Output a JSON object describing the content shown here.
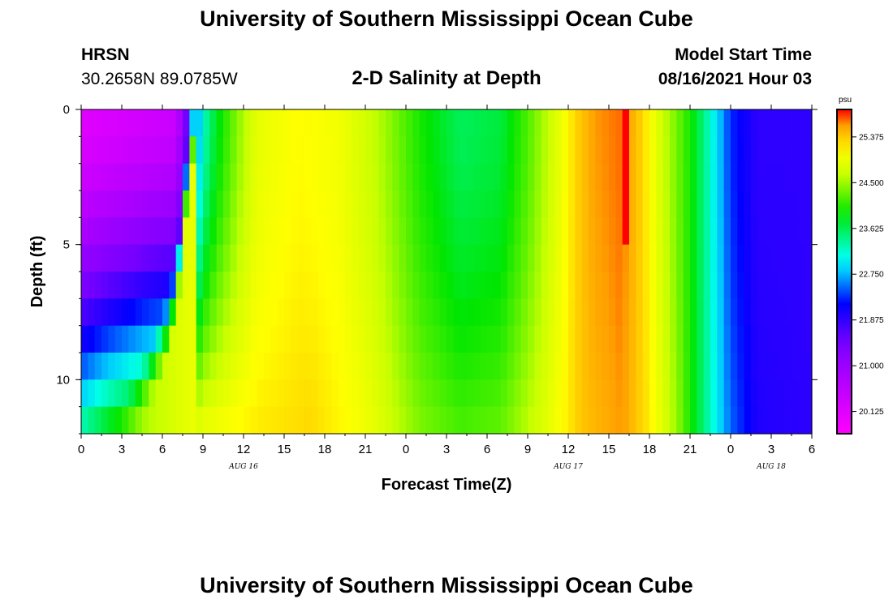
{
  "header": {
    "title": "University of Southern Mississippi Ocean Cube",
    "station": "HRSN",
    "coords": "30.2658N  89.0785W",
    "subtitle": "2-D Salinity at Depth",
    "start_label": "Model Start Time",
    "start_value": "08/16/2021 Hour 03"
  },
  "footer": {
    "title": "University of Southern Mississippi Ocean Cube"
  },
  "chart_data": {
    "type": "heatmap",
    "title": "2-D Salinity at Depth",
    "xlabel": "Forecast Time(Z)",
    "ylabel": "Depth (ft)",
    "x_range_hours": [
      0,
      54
    ],
    "x_tick_values": [
      0,
      3,
      6,
      9,
      12,
      15,
      18,
      21,
      24,
      27,
      30,
      33,
      36,
      39,
      42,
      45,
      48,
      51,
      54
    ],
    "x_tick_labels": [
      "0",
      "3",
      "6",
      "9",
      "12",
      "15",
      "18",
      "21",
      "0",
      "3",
      "6",
      "9",
      "12",
      "15",
      "18",
      "21",
      "0",
      "3",
      "6"
    ],
    "date_labels": [
      {
        "hour": 12,
        "label": "AUG 16"
      },
      {
        "hour": 36,
        "label": "AUG 17"
      },
      {
        "hour": 51,
        "label": "AUG 18"
      }
    ],
    "ylim": [
      0,
      12
    ],
    "y_tick_values": [
      0,
      5,
      10
    ],
    "y_tick_labels": [
      "0",
      "5",
      "10"
    ],
    "colorbar": {
      "unit": "psu",
      "min": 19.7,
      "max": 25.9,
      "ticks": [
        20.125,
        21.0,
        21.875,
        22.75,
        23.625,
        24.5,
        25.375
      ],
      "tick_labels": [
        "20.125",
        "21.000",
        "21.875",
        "22.750",
        "23.625",
        "24.500",
        "25.375"
      ]
    },
    "salinity_surface_by_hour": [
      {
        "hour": 0,
        "psu": 20.1
      },
      {
        "hour": 7,
        "psu": 20.4
      },
      {
        "hour": 8,
        "psu": 21.8
      },
      {
        "hour": 9,
        "psu": 23.2
      },
      {
        "hour": 10,
        "psu": 23.8
      },
      {
        "hour": 11.5,
        "psu": 24.4
      },
      {
        "hour": 13,
        "psu": 24.9
      },
      {
        "hour": 16,
        "psu": 25.1
      },
      {
        "hour": 19,
        "psu": 25.0
      },
      {
        "hour": 22,
        "psu": 24.6
      },
      {
        "hour": 25,
        "psu": 24.0
      },
      {
        "hour": 28,
        "psu": 23.6
      },
      {
        "hour": 31,
        "psu": 23.7
      },
      {
        "hour": 33,
        "psu": 24.2
      },
      {
        "hour": 35,
        "psu": 24.8
      },
      {
        "hour": 36.5,
        "psu": 25.3
      },
      {
        "hour": 38,
        "psu": 25.6
      },
      {
        "hour": 40,
        "psu": 25.7
      },
      {
        "hour": 41.5,
        "psu": 25.3
      },
      {
        "hour": 43,
        "psu": 24.7
      },
      {
        "hour": 45,
        "psu": 24.0
      },
      {
        "hour": 46.5,
        "psu": 23.2
      },
      {
        "hour": 48,
        "psu": 22.3
      },
      {
        "hour": 50,
        "psu": 21.9
      },
      {
        "hour": 54,
        "psu": 21.9
      }
    ],
    "salinity_bottom_by_hour": [
      {
        "hour": 0,
        "psu": 23.5
      },
      {
        "hour": 2,
        "psu": 24.0
      },
      {
        "hour": 5,
        "psu": 24.6
      },
      {
        "hour": 9,
        "psu": 25.0
      },
      {
        "hour": 13,
        "psu": 25.2
      },
      {
        "hour": 17,
        "psu": 25.3
      },
      {
        "hour": 21,
        "psu": 25.0
      },
      {
        "hour": 25,
        "psu": 24.4
      },
      {
        "hour": 28,
        "psu": 24.2
      },
      {
        "hour": 31,
        "psu": 24.3
      },
      {
        "hour": 34,
        "psu": 24.8
      },
      {
        "hour": 37,
        "psu": 25.4
      },
      {
        "hour": 40,
        "psu": 25.6
      },
      {
        "hour": 42,
        "psu": 25.2
      },
      {
        "hour": 44,
        "psu": 24.5
      },
      {
        "hour": 46,
        "psu": 23.5
      },
      {
        "hour": 48,
        "psu": 22.5
      },
      {
        "hour": 50,
        "psu": 22.0
      },
      {
        "hour": 54,
        "psu": 21.9
      }
    ],
    "fresh_layer_thickness_ft": [
      {
        "hour": 0,
        "depth": 12.0
      },
      {
        "hour": 3,
        "depth": 11.0
      },
      {
        "hour": 5,
        "depth": 9.0
      },
      {
        "hour": 6.5,
        "depth": 7.0
      },
      {
        "hour": 7.5,
        "depth": 4.0
      },
      {
        "hour": 8,
        "depth": 0
      }
    ],
    "max_salinity_patch": {
      "hour": 40.5,
      "depth_top": 0.5,
      "depth_bottom": 4.5,
      "psu": 25.95
    }
  }
}
